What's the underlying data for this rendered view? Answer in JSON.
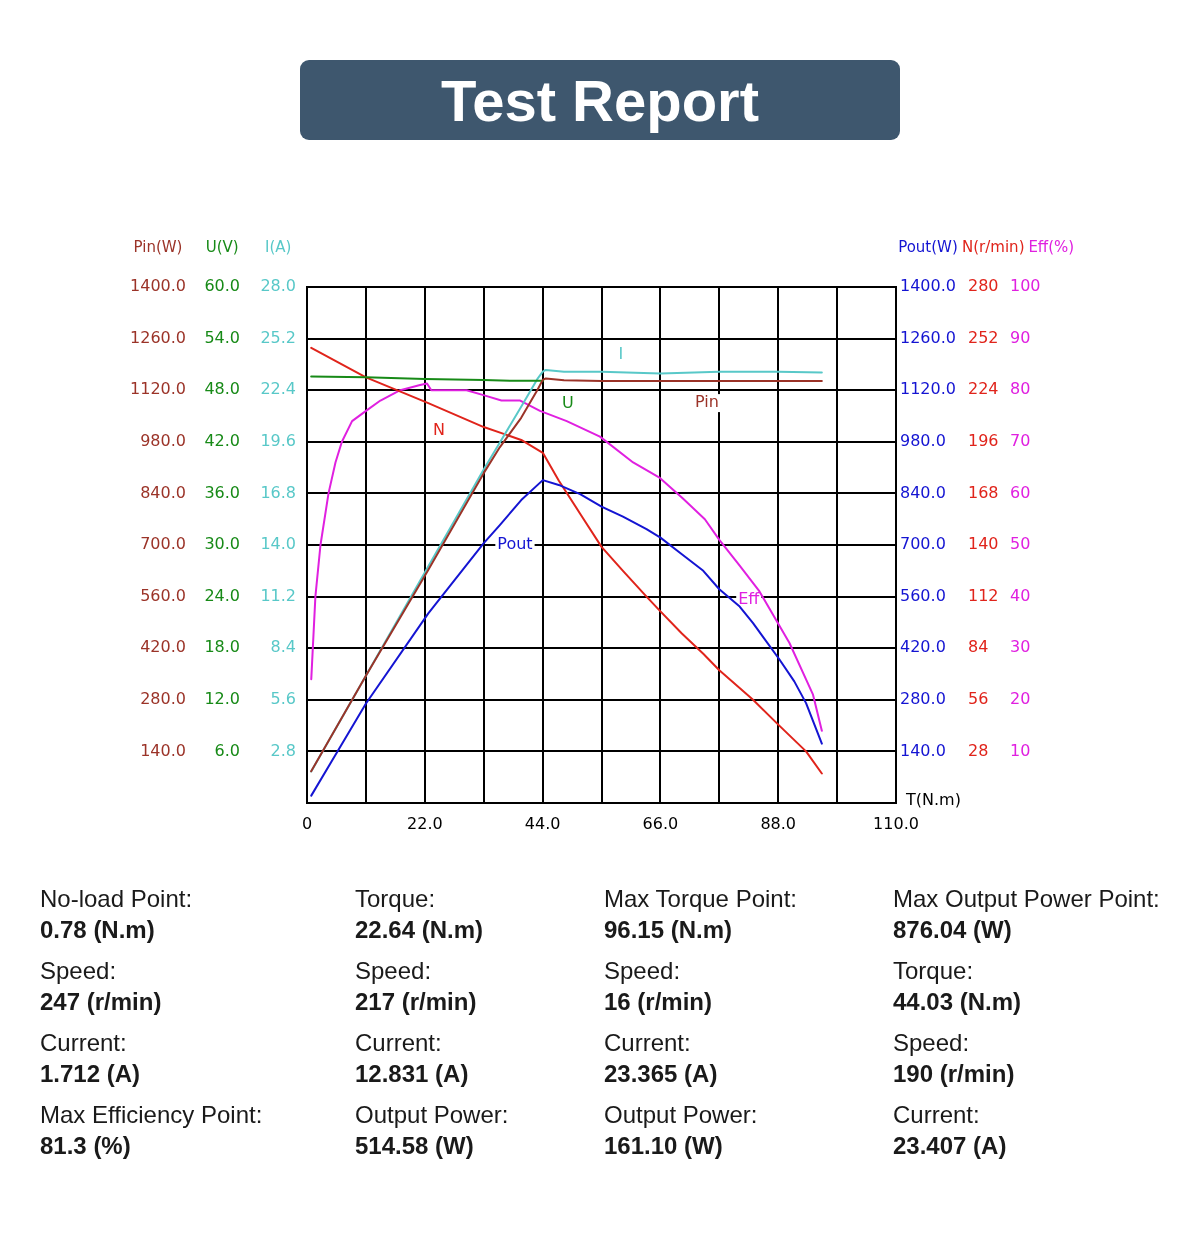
{
  "chart_data": [
    {
      "type": "line",
      "title": "Test Report",
      "ylabel": "Pin(W)",
      "y2label": "U(V)",
      "y3label": "I(A)",
      "tick_labels": "y",
      "xlim": [
        0,
        110
      ],
      "ylim": [
        0,
        1400
      ],
      "yticks": [
        {
          "value": 140,
          "label": "140.0"
        },
        {
          "value": 280,
          "label": "280.0"
        },
        {
          "value": 420,
          "label": "420.0"
        },
        {
          "value": 560,
          "label": "560.0"
        },
        {
          "value": 700,
          "label": "700.0"
        },
        {
          "value": 840,
          "label": "840.0"
        },
        {
          "value": 980,
          "label": "980.0"
        },
        {
          "value": 1120,
          "label": "1120.0"
        },
        {
          "value": 1260,
          "label": "1260.0"
        },
        {
          "value": 1400,
          "label": "1400.0"
        }
      ],
      "y2lim": [
        0,
        60
      ],
      "y2ticks": [
        {
          "value": 6,
          "label": "6.0"
        },
        {
          "value": 12,
          "label": "12.0"
        },
        {
          "value": 18,
          "label": "18.0"
        },
        {
          "value": 24,
          "label": "24.0"
        },
        {
          "value": 30,
          "label": "30.0"
        },
        {
          "value": 36,
          "label": "36.0"
        },
        {
          "value": 42,
          "label": "42.0"
        },
        {
          "value": 48,
          "label": "48.0"
        },
        {
          "value": 54,
          "label": "54.0"
        },
        {
          "value": 60,
          "label": "60.0"
        }
      ],
      "y3lim": [
        0,
        28
      ],
      "y3ticks": [
        2.8,
        5.6,
        8.4,
        11.2,
        {
          "value": 14,
          "label": "14.0"
        },
        16.8,
        19.6,
        22.4,
        25.2,
        {
          "value": 28,
          "label": "28.0"
        }
      ],
      "series": [
        {
          "name": "Pin",
          "color": "#9b3328",
          "x": [
            0.78,
            11,
            22.64,
            33,
            36,
            40,
            43,
            44.03,
            44.6,
            48,
            55,
            66,
            77,
            88,
            96.15
          ],
          "values": [
            86,
            345,
            632,
            895,
            965,
            1045,
            1120,
            1148,
            1152,
            1147,
            1145,
            1145,
            1145,
            1145,
            1145
          ]
        },
        {
          "name": "U",
          "color": "#178a17",
          "axis": "y2",
          "x": [
            0.78,
            11,
            22,
            33,
            38,
            44.1
          ],
          "values": [
            49.6,
            49.5,
            49.3,
            49.2,
            49.1,
            49.1
          ]
        },
        {
          "name": "I",
          "color": "#58c8c8",
          "axis": "y3",
          "x": [
            0.78,
            11,
            22.64,
            33,
            36.1,
            40,
            43,
            44.03,
            44.6,
            48,
            55,
            66,
            77,
            88,
            96.15
          ],
          "values": [
            1.712,
            6.9,
            12.831,
            18.1,
            19.6,
            21.5,
            23.0,
            23.407,
            23.5,
            23.4,
            23.4,
            23.3,
            23.4,
            23.4,
            23.365
          ]
        }
      ],
      "annotations": [
        "No-load Point:",
        "0.78 (N.m)",
        "Speed:",
        "247 (r/min)",
        "Current:",
        "1.712 (A)",
        "Max Efficiency Point:",
        "81.3 (%)",
        "Torque:",
        "22.64 (N.m)",
        "Speed:",
        "217 (r/min)",
        "Current:",
        "12.831 (A)",
        "Output Power:",
        "514.58 (W)",
        "Max Torque Point:",
        "96.15 (N.m)",
        "Speed:",
        "16 (r/min)",
        "Current:",
        "23.365 (A)",
        "Output Power:",
        "161.10 (W)",
        "Max Output Power Point:",
        "876.04 (W)",
        "Torque:",
        "44.03 (N.m)",
        "Speed:",
        "190 (r/min)",
        "Current:",
        "23.407 (A)"
      ]
    },
    {
      "type": "line",
      "xlabel": "T(N.m)",
      "ylabel": "Pout(W)",
      "y2label": "N(r/min)",
      "y3label": "Eff(%)",
      "xlim": [
        0,
        110
      ],
      "xticks": [
        0,
        {
          "value": 11,
          "label": null
        },
        {
          "value": 22,
          "label": "22.0"
        },
        {
          "value": 33,
          "label": null
        },
        {
          "value": 44,
          "label": "44.0"
        },
        {
          "value": 55,
          "label": null
        },
        {
          "value": 66,
          "label": "66.0"
        },
        {
          "value": 77,
          "label": null
        },
        {
          "value": 88,
          "label": "88.0"
        },
        {
          "value": 99,
          "label": null
        },
        {
          "value": 110,
          "label": "110.0"
        }
      ],
      "ylim": [
        0,
        1400
      ],
      "yticks": [
        {
          "value": 140,
          "label": "140.0"
        },
        {
          "value": 280,
          "label": "280.0"
        },
        {
          "value": 420,
          "label": "420.0"
        },
        {
          "value": 560,
          "label": "560.0"
        },
        {
          "value": 700,
          "label": "700.0"
        },
        {
          "value": 840,
          "label": "840.0"
        },
        {
          "value": 980,
          "label": "980.0"
        },
        {
          "value": 1120,
          "label": "1120.0"
        },
        {
          "value": 1260,
          "label": "1260.0"
        },
        {
          "value": 1400,
          "label": "1400.0"
        }
      ],
      "y2lim": [
        0,
        280
      ],
      "y2ticks": [
        28,
        56,
        84,
        112,
        140,
        168,
        196,
        224,
        252,
        280
      ],
      "y3lim": [
        0,
        100
      ],
      "y3ticks": [
        10,
        20,
        30,
        40,
        50,
        60,
        70,
        80,
        90,
        100
      ],
      "grid": true,
      "series": [
        {
          "name": "Pout",
          "color": "#1414d2",
          "x": [
            0.78,
            11,
            22.64,
            33,
            36,
            40,
            44.03,
            47,
            51,
            55,
            59,
            63.4,
            66,
            70,
            74,
            77,
            80.8,
            83.3,
            88.2,
            91,
            93.2,
            96.15
          ],
          "values": [
            20,
            270,
            514.58,
            705,
            754,
            822,
            876.04,
            863,
            838,
            804,
            777,
            743,
            720,
            675,
            630,
            580,
            533,
            488,
            390,
            330,
            271,
            161.1
          ]
        },
        {
          "name": "N",
          "color": "#e0241b",
          "axis": "y2",
          "x": [
            0.78,
            11,
            22.64,
            33,
            37,
            40,
            44.03,
            47,
            51,
            55,
            59,
            63.4,
            66,
            70,
            74,
            77,
            83.3,
            88.2,
            93.2,
            96.15
          ],
          "values": [
            247,
            231,
            217,
            204,
            200,
            197,
            190,
            175,
            157,
            139,
            126,
            112,
            104,
            92,
            81,
            72,
            56,
            42,
            28,
            16
          ]
        },
        {
          "name": "Eff",
          "color": "#e020e0",
          "axis": "y3",
          "x": [
            0.78,
            1.55,
            2.5,
            4,
            5.3,
            6.5,
            8.4,
            11,
            13.7,
            17.4,
            21.1,
            22.4,
            23.2,
            25.5,
            29.8,
            33.1,
            36.3,
            39.8,
            43.5,
            48.5,
            54.7,
            60.9,
            65.9,
            70.2,
            74.3,
            77,
            80.8,
            84.5,
            90.1,
            94.5,
            96.15
          ],
          "values": [
            24,
            40,
            50,
            60,
            66,
            70,
            74,
            76,
            78,
            80,
            81,
            81.3,
            80,
            80,
            80,
            79,
            78,
            78,
            76,
            74,
            71,
            66,
            63,
            59,
            55,
            51,
            46,
            41,
            31,
            21,
            14
          ]
        }
      ]
    }
  ]
}
